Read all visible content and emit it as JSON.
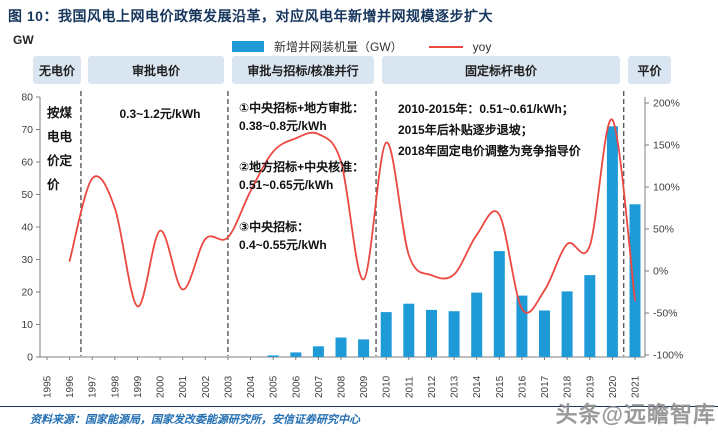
{
  "title": "图 10：我国风电上网电价政策发展沿革，对应风电年新增并网规模逐步扩大",
  "axis_left_unit": "GW",
  "legend": {
    "bar_label": "新增并网装机量（GW）",
    "line_label": "yoy"
  },
  "policy_bands": [
    {
      "label": "无电价"
    },
    {
      "label": "审批电价"
    },
    {
      "label": "审批与招标/核准并行"
    },
    {
      "label": "固定标杆电价"
    },
    {
      "label": "平价"
    }
  ],
  "annotations": {
    "coal_pricing_vertical": "按煤电电价定价",
    "approval_price_range": "0.3~1.2元/kWh",
    "bidding1_line1": "①中央招标+地方审批：",
    "bidding1_line2": "0.38~0.8元/kWh",
    "bidding2_line1": "②地方招标+中央核准：",
    "bidding2_line2": "0.51~0.65元/kWh",
    "bidding3_line1": "③中央招标：",
    "bidding3_line2": "0.4~0.55元/kWh",
    "fixed_line1": "2010-2015年：0.51~0.61/kWh；",
    "fixed_line2": "2015年后补贴逐步退坡；",
    "fixed_line3": "2018年固定电价调整为竞争指导价"
  },
  "source": "资料来源：国家能源局，国家发改委能源研究所，安信证券研究中心",
  "watermark": "头条@远瞻智库",
  "colors": {
    "bar": "#1E9BD7",
    "line": "#EC4842",
    "navy": "#17365D",
    "band_bg": "#D9E5F1",
    "axis": "#7F7F7F",
    "separator": "#595959",
    "tick_text": "#404040"
  },
  "chart_data": {
    "type": "bar+line combo",
    "title": "我国风电年新增并网装机量及同比增速",
    "categories": [
      "1995",
      "1996",
      "1997",
      "1998",
      "1999",
      "2000",
      "2001",
      "2002",
      "2003",
      "2004",
      "2005",
      "2006",
      "2007",
      "2008",
      "2009",
      "2010",
      "2011",
      "2012",
      "2013",
      "2014",
      "2015",
      "2016",
      "2017",
      "2018",
      "2019",
      "2020",
      "2021"
    ],
    "series": [
      {
        "name": "新增并网装机量（GW）",
        "type": "bar",
        "axis": "left",
        "values": [
          null,
          null,
          null,
          null,
          null,
          null,
          null,
          null,
          null,
          null,
          0.5,
          1.4,
          3.3,
          6.0,
          5.4,
          13.8,
          16.4,
          14.5,
          14.1,
          19.8,
          32.6,
          18.9,
          14.3,
          20.2,
          25.2,
          71.0,
          47.0
        ]
      },
      {
        "name": "yoy",
        "type": "line",
        "axis": "right",
        "unit": "%",
        "values": [
          null,
          12,
          110,
          75,
          -42,
          48,
          -22,
          38,
          40,
          95,
          142,
          158,
          163,
          130,
          -10,
          153,
          19,
          -5,
          -4,
          43,
          67,
          -45,
          -23,
          32,
          30,
          180,
          -35
        ]
      }
    ],
    "left_axis": {
      "label": "GW",
      "min": 0,
      "max": 80,
      "ticks": [
        0,
        10,
        20,
        30,
        40,
        50,
        60,
        70,
        80
      ]
    },
    "right_axis": {
      "min": -100,
      "max": 200,
      "ticks": [
        "-100%",
        "-50%",
        "0%",
        "50%",
        "100%",
        "150%",
        "200%"
      ]
    },
    "separator_years": [
      1996.5,
      2003,
      2009.55,
      2020.5
    ],
    "grid": "off",
    "legend_position": "top-center"
  }
}
